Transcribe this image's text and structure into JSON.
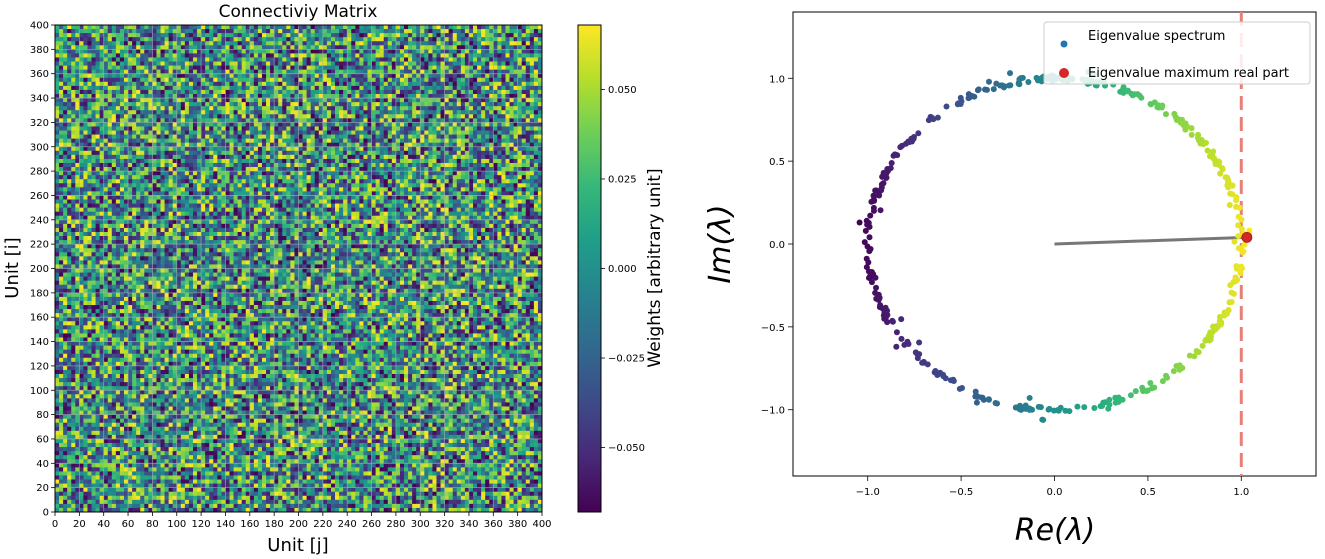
{
  "chart_data": [
    {
      "type": "heatmap",
      "title": "Connectiviy Matrix",
      "xlabel": "Unit [j]",
      "ylabel": "Unit [i]",
      "xlim": [
        0,
        400
      ],
      "ylim": [
        0,
        400
      ],
      "x_ticks": [
        "0",
        "20",
        "40",
        "60",
        "80",
        "100",
        "120",
        "140",
        "160",
        "180",
        "200",
        "220",
        "240",
        "260",
        "280",
        "300",
        "320",
        "340",
        "360",
        "380",
        "400"
      ],
      "y_ticks": [
        "0",
        "20",
        "40",
        "60",
        "80",
        "100",
        "120",
        "140",
        "160",
        "180",
        "200",
        "220",
        "240",
        "260",
        "280",
        "300",
        "320",
        "340",
        "360",
        "380",
        "400"
      ],
      "grid": true,
      "description_values": "random weights, approx. uniform in [-0.068, 0.068]",
      "value_range": [
        -0.068,
        0.068
      ],
      "colormap": "viridis",
      "colorbar": {
        "label": "Weights [arbitrary unit]",
        "ticks": [
          "0.050",
          "0.025",
          "0.000",
          "−0.025",
          "−0.050"
        ],
        "tick_values": [
          0.05,
          0.025,
          0.0,
          -0.025,
          -0.05
        ]
      }
    },
    {
      "type": "scatter",
      "xlabel": "Re(λ)",
      "ylabel": "Im(λ)",
      "xlim": [
        -1.4,
        1.4
      ],
      "ylim": [
        -1.4,
        1.4
      ],
      "x_ticks": [
        "−1.0",
        "−0.5",
        "0.0",
        "0.5",
        "1.0"
      ],
      "x_tick_values": [
        -1.0,
        -0.5,
        0.0,
        0.5,
        1.0
      ],
      "y_ticks": [
        "1.0",
        "0.5",
        "0.0",
        "−0.5",
        "−1.0"
      ],
      "y_tick_values": [
        1.0,
        0.5,
        0.0,
        -0.5,
        -1.0
      ],
      "series": [
        {
          "name": "Eigenvalue spectrum",
          "color": "#1f77b4",
          "n_points": 400,
          "radius": 1.0,
          "colored_by": "real part (viridis)"
        },
        {
          "name": "Eigenvalue maximum real part",
          "color": "#d62728",
          "x": 1.03,
          "y": 0.04
        }
      ],
      "radius_line": {
        "from": [
          0,
          0
        ],
        "to": [
          1.03,
          0.04
        ],
        "color": "#777777"
      },
      "vline": {
        "x": 1.0,
        "color": "#e8807a",
        "style": "dashed"
      },
      "legend_location": "top-right"
    }
  ],
  "colors": {
    "viridis": [
      "#440154",
      "#482878",
      "#3e4a89",
      "#31688e",
      "#26828e",
      "#1f9e89",
      "#35b779",
      "#6ece58",
      "#b5de2b",
      "#fde725"
    ]
  }
}
